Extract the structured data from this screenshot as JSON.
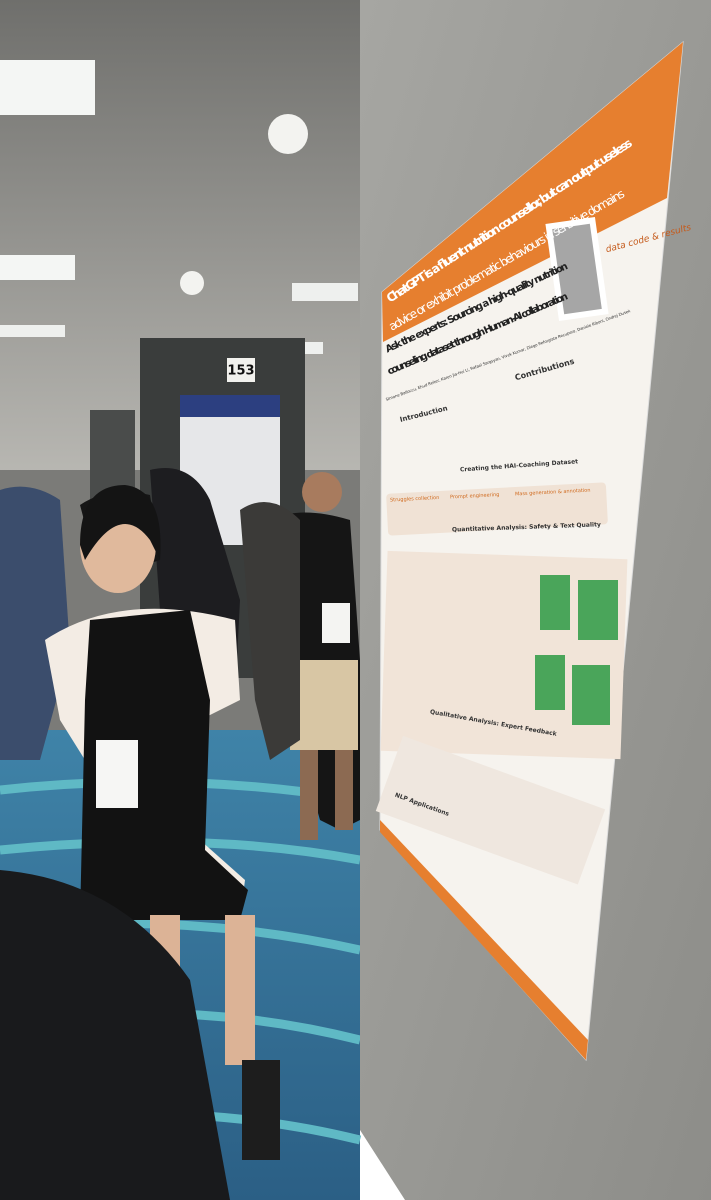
{
  "booth_number": "153",
  "poster": {
    "banner": [
      "ChatGPT is a fluent nutrition counsellor, but can output useless",
      "advice or exhibit problematic behaviours in sensitive domains"
    ],
    "handwritten_note": "data code & results",
    "title": [
      "Ask the experts: Sourcing a high-quality nutrition",
      "counseling dataset through Human-AI collaboration"
    ],
    "authors": "Simone Balloccu, Ehud Reiter, Karen Jia-Hui Li, Rafael Sargsyan, Vivek Kumar, Diego Reforgiato Recupero, Daniele Riboni, Ondrej Dusek",
    "sections": [
      "Introduction",
      "Contributions",
      "Creating the HAI-Coaching Dataset",
      "Quantitative Analysis: Safety & Text Quality",
      "Qualitative Analysis: Expert Feedback",
      "NLP Applications"
    ],
    "pipeline": [
      "Struggles collection",
      "Prompt engineering",
      "Mass generation & annotation"
    ]
  }
}
